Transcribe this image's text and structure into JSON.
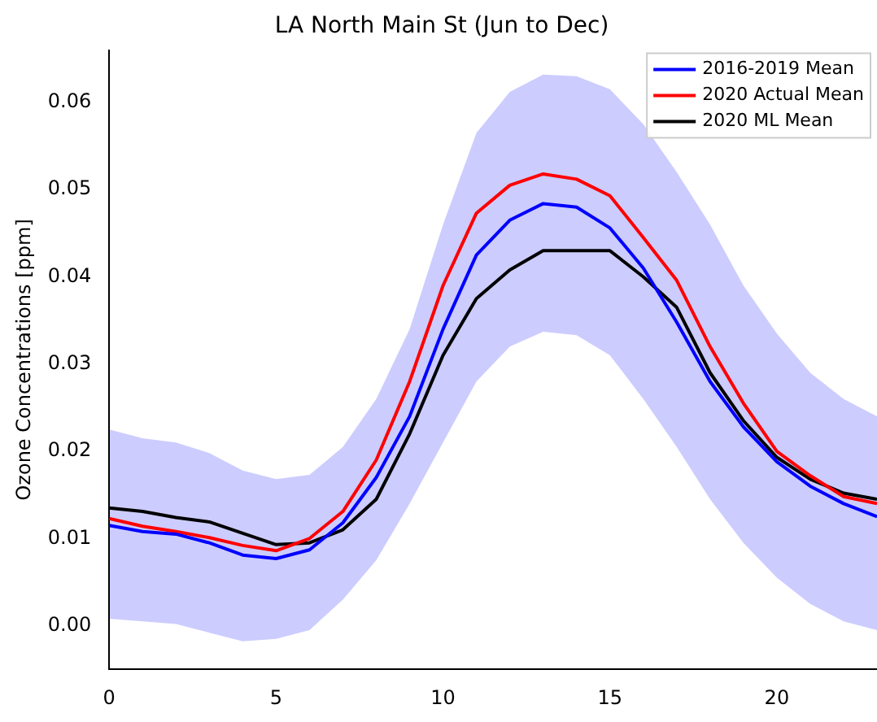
{
  "chart_data": {
    "type": "line",
    "title": "LA North Main St (Jun to Dec)",
    "ylabel": "Ozone Concentrations [ppm]",
    "x": [
      0,
      1,
      2,
      3,
      4,
      5,
      6,
      7,
      8,
      9,
      10,
      11,
      12,
      13,
      14,
      15,
      16,
      17,
      18,
      19,
      20,
      21,
      22,
      23
    ],
    "xlim": [
      0,
      23
    ],
    "xticks": [
      0,
      5,
      10,
      15,
      20
    ],
    "ylim": [
      -0.005,
      0.066
    ],
    "yticks": [
      {
        "value": 0,
        "label": "0.00"
      },
      {
        "value": 0.01,
        "label": "0.01"
      },
      {
        "value": 0.02,
        "label": "0.02"
      },
      {
        "value": 0.03,
        "label": "0.03"
      },
      {
        "value": 0.04,
        "label": "0.04"
      },
      {
        "value": 0.05,
        "label": "0.05"
      },
      {
        "value": 0.06,
        "label": "0.06"
      }
    ],
    "grid": false,
    "legend": "top right",
    "marker": "none",
    "line_style": "solid",
    "series": [
      {
        "name": "2016-2019 Mean",
        "color": "#0000ff",
        "values": [
          0.0115,
          0.0108,
          0.0105,
          0.0095,
          0.0081,
          0.0077,
          0.0087,
          0.0118,
          0.017,
          0.024,
          0.034,
          0.0425,
          0.0465,
          0.0484,
          0.048,
          0.0456,
          0.041,
          0.0348,
          0.028,
          0.0228,
          0.0188,
          0.016,
          0.014,
          0.0125
        ],
        "lower": [
          0.0008,
          0.0005,
          0.0002,
          -0.0008,
          -0.0018,
          -0.0015,
          -0.0005,
          0.003,
          0.0075,
          0.014,
          0.021,
          0.028,
          0.032,
          0.0337,
          0.0333,
          0.031,
          0.026,
          0.0205,
          0.0145,
          0.0095,
          0.0055,
          0.0025,
          0.0005,
          -0.0005
        ],
        "upper": [
          0.0225,
          0.0215,
          0.021,
          0.0198,
          0.0178,
          0.0168,
          0.0173,
          0.0205,
          0.026,
          0.034,
          0.046,
          0.0565,
          0.0612,
          0.0632,
          0.063,
          0.0615,
          0.0575,
          0.052,
          0.046,
          0.039,
          0.0335,
          0.029,
          0.026,
          0.024
        ]
      },
      {
        "name": "2020 Actual Mean",
        "color": "#ff0000",
        "values": [
          0.0123,
          0.0114,
          0.0108,
          0.0101,
          0.0092,
          0.0086,
          0.01,
          0.0131,
          0.019,
          0.028,
          0.039,
          0.0473,
          0.0505,
          0.0518,
          0.0512,
          0.0493,
          0.0445,
          0.0396,
          0.032,
          0.0255,
          0.02,
          0.0172,
          0.0148,
          0.014
        ]
      },
      {
        "name": "2020 ML Mean",
        "color": "#000000",
        "values": [
          0.0135,
          0.0131,
          0.0124,
          0.0119,
          0.0106,
          0.0093,
          0.0095,
          0.011,
          0.0145,
          0.022,
          0.031,
          0.0375,
          0.0408,
          0.043,
          0.043,
          0.043,
          0.04,
          0.0365,
          0.029,
          0.0235,
          0.0193,
          0.0168,
          0.0152,
          0.0145
        ]
      }
    ]
  }
}
